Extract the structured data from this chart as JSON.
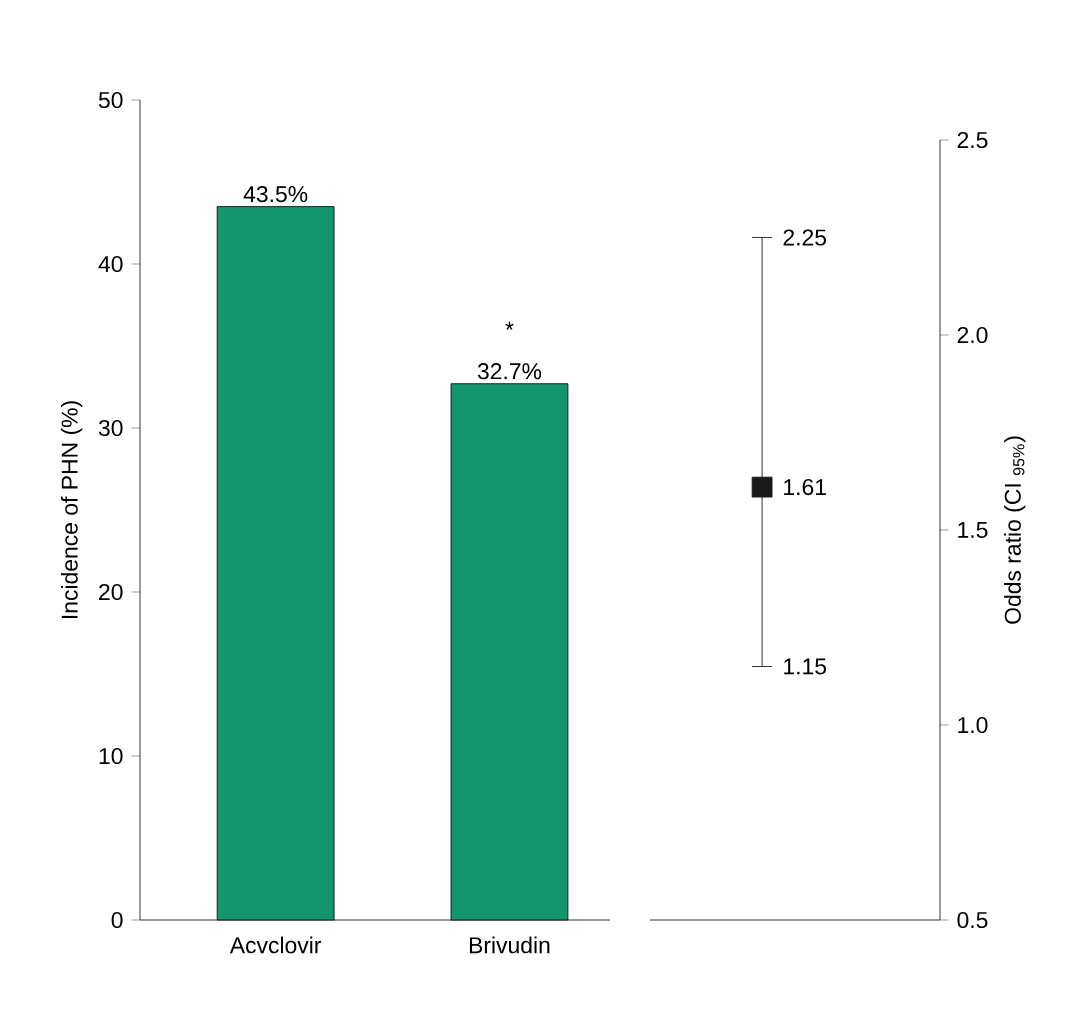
{
  "chart_data": [
    {
      "type": "bar",
      "categories": [
        "Acvclovir",
        "Brivudin"
      ],
      "values": [
        43.5,
        32.7
      ],
      "color": "#14956e",
      "value_labels": [
        "43.5%",
        "32.7%"
      ],
      "ylabel": "Incidence of PHN (%)",
      "ylim": [
        0,
        50
      ],
      "yticks": [
        0,
        10,
        20,
        30,
        40,
        50
      ],
      "annotations": [
        "*"
      ]
    },
    {
      "type": "scatter",
      "categories": [
        null
      ],
      "values": [
        1.61
      ],
      "errors": [
        [
          1.15,
          2.25
        ]
      ],
      "value_labels": [
        "1.61"
      ],
      "color": "#1a1a1a",
      "marker": "square",
      "ylabel": "Odds ratio (CI $_{95%}$)",
      "ylim": [
        0.5,
        2.5
      ],
      "yticks": [
        0.5,
        {
          "value": 1,
          "label": "1.0"
        },
        1.5,
        {
          "value": 2,
          "label": "2.0"
        },
        2.5
      ],
      "annotations": [
        "2.25",
        "1.15"
      ]
    }
  ]
}
